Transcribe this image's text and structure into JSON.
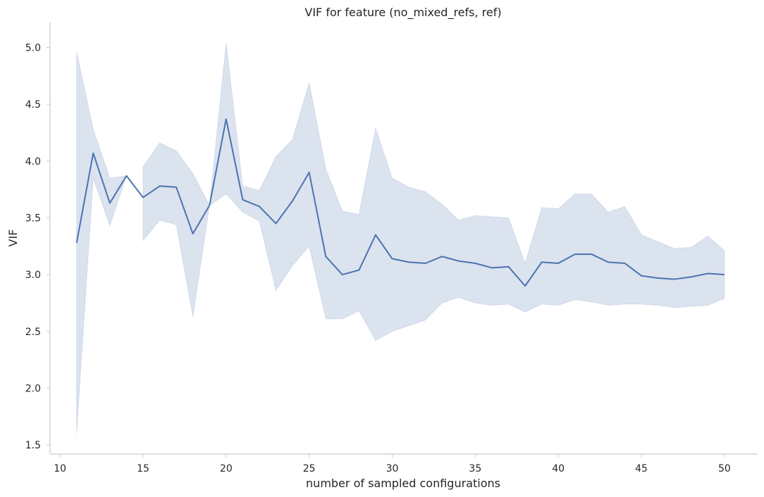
{
  "chart_data": {
    "type": "line",
    "title": "VIF for feature (no_mixed_refs, ref)",
    "xlabel": "number of sampled configurations",
    "ylabel": "VIF",
    "xlim": [
      9.4,
      52.0
    ],
    "ylim": [
      1.42,
      5.22
    ],
    "xticks": [
      10,
      15,
      20,
      25,
      30,
      35,
      40,
      45,
      50
    ],
    "yticks": [
      1.5,
      2.0,
      2.5,
      3.0,
      3.5,
      4.0,
      4.5,
      5.0
    ],
    "grid": false,
    "colors": {
      "line": "#4c72b0",
      "band": "#4c72b0"
    },
    "series": [
      {
        "x": [
          11,
          12,
          13,
          14,
          15,
          16,
          17,
          18,
          19,
          20,
          21,
          22,
          23,
          24,
          25,
          26,
          27,
          28,
          29,
          30,
          31,
          32,
          33,
          34,
          35,
          36,
          37,
          38,
          39,
          40,
          41,
          42,
          43,
          44,
          45,
          46,
          47,
          48,
          49,
          50
        ],
        "y": [
          3.28,
          4.07,
          3.63,
          3.87,
          3.68,
          3.78,
          3.77,
          3.36,
          3.61,
          4.37,
          3.66,
          3.6,
          3.45,
          3.65,
          3.9,
          3.16,
          3.0,
          3.04,
          3.35,
          3.14,
          3.11,
          3.1,
          3.16,
          3.12,
          3.1,
          3.06,
          3.07,
          2.9,
          3.11,
          3.1,
          3.18,
          3.18,
          3.11,
          3.1,
          2.99,
          2.97,
          2.96,
          2.98,
          3.01,
          3.0
        ],
        "lower": [
          1.6,
          3.85,
          3.43,
          3.87,
          3.3,
          3.48,
          3.44,
          2.63,
          3.61,
          3.71,
          3.55,
          3.47,
          2.86,
          3.08,
          3.25,
          2.61,
          2.61,
          2.68,
          2.42,
          2.5,
          2.55,
          2.6,
          2.75,
          2.8,
          2.75,
          2.73,
          2.74,
          2.67,
          2.74,
          2.73,
          2.78,
          2.76,
          2.73,
          2.74,
          2.74,
          2.73,
          2.71,
          2.72,
          2.73,
          2.79
        ],
        "upper": [
          4.96,
          4.28,
          3.85,
          3.87,
          3.95,
          4.16,
          4.09,
          3.89,
          3.61,
          5.04,
          3.78,
          3.74,
          4.04,
          4.19,
          4.69,
          3.93,
          3.56,
          3.53,
          4.29,
          3.85,
          3.77,
          3.73,
          3.62,
          3.48,
          3.52,
          3.51,
          3.5,
          3.1,
          3.59,
          3.58,
          3.71,
          3.71,
          3.55,
          3.6,
          3.35,
          3.29,
          3.23,
          3.24,
          3.34,
          3.21
        ],
        "breaks_after": [
          14
        ]
      }
    ]
  }
}
